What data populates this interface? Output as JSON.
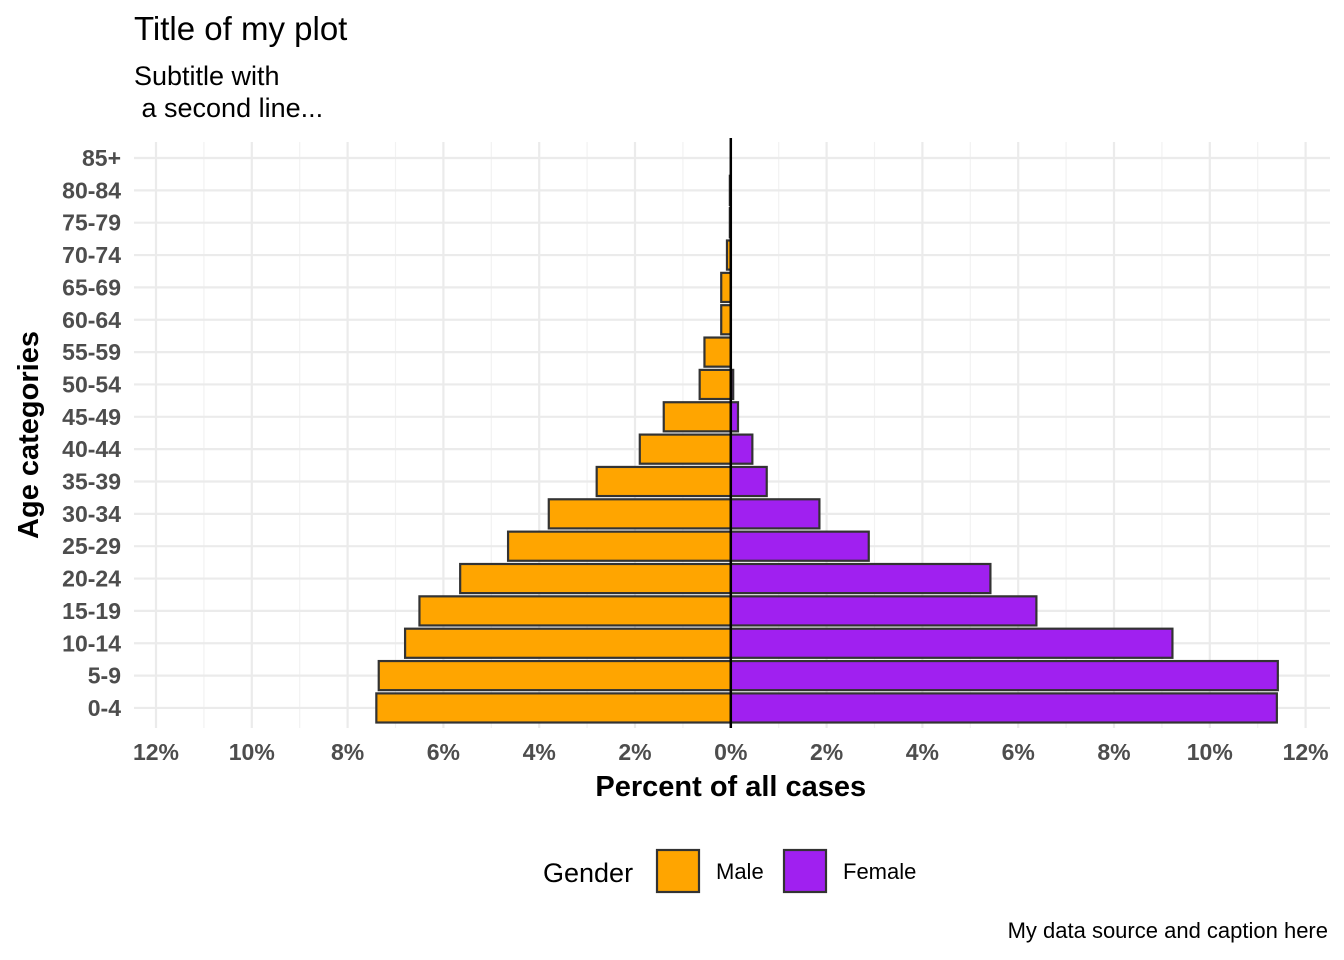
{
  "chart_data": {
    "type": "bar",
    "orientation": "horizontal",
    "title": "Title of my plot",
    "subtitle": "Subtitle with\n a second line...",
    "caption": "My data source and caption here",
    "xlabel": "Percent of all cases",
    "ylabel": "Age categories",
    "xlim": [
      -12,
      12
    ],
    "x_ticks": [
      -12,
      -10,
      -8,
      -6,
      -4,
      -2,
      0,
      2,
      4,
      6,
      8,
      10,
      12
    ],
    "x_tick_labels": [
      "12%",
      "10%",
      "8%",
      "6%",
      "4%",
      "2%",
      "0%",
      "2%",
      "4%",
      "6%",
      "8%",
      "10%",
      "12%"
    ],
    "categories": [
      "0-4",
      "5-9",
      "10-14",
      "15-19",
      "20-24",
      "25-29",
      "30-34",
      "35-39",
      "40-44",
      "45-49",
      "50-54",
      "55-59",
      "60-64",
      "65-69",
      "70-74",
      "75-79",
      "80-84",
      "85+"
    ],
    "series": [
      {
        "name": "Male",
        "color": "#FFA500",
        "values": [
          -7.4,
          -7.35,
          -6.8,
          -6.5,
          -5.65,
          -4.65,
          -3.8,
          -2.8,
          -1.9,
          -1.4,
          -0.65,
          -0.55,
          -0.2,
          -0.2,
          -0.08,
          -0.02,
          -0.02,
          0
        ]
      },
      {
        "name": "Female",
        "color": "#A020F0",
        "values": [
          11.4,
          11.42,
          9.22,
          6.38,
          5.42,
          2.88,
          1.85,
          0.75,
          0.45,
          0.15,
          0.05,
          0,
          0,
          0,
          0,
          0,
          0,
          0
        ]
      }
    ],
    "grid": true,
    "legend": {
      "title": "Gender",
      "position": "bottom"
    }
  }
}
